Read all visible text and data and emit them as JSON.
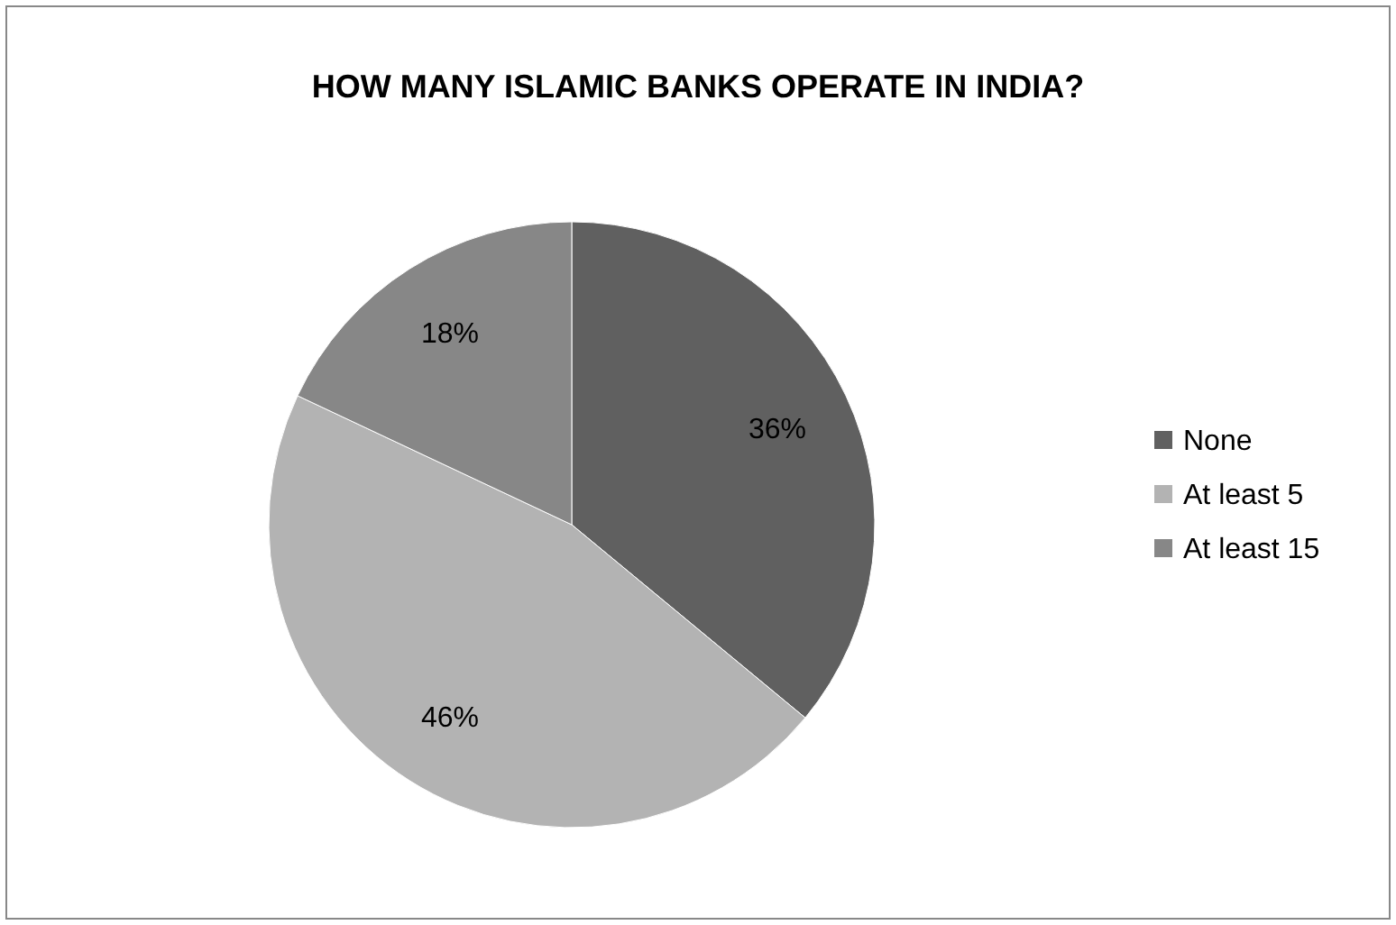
{
  "chart_data": {
    "type": "pie",
    "title": "HOW MANY ISLAMIC BANKS OPERATE IN INDIA?",
    "categories": [
      "None",
      "At least 5",
      "At least 15"
    ],
    "values": [
      36,
      46,
      18
    ],
    "colors": [
      "#606060",
      "#b3b3b3",
      "#878787"
    ],
    "value_labels": [
      "36%",
      "46%",
      "18%"
    ],
    "legend": "right"
  }
}
